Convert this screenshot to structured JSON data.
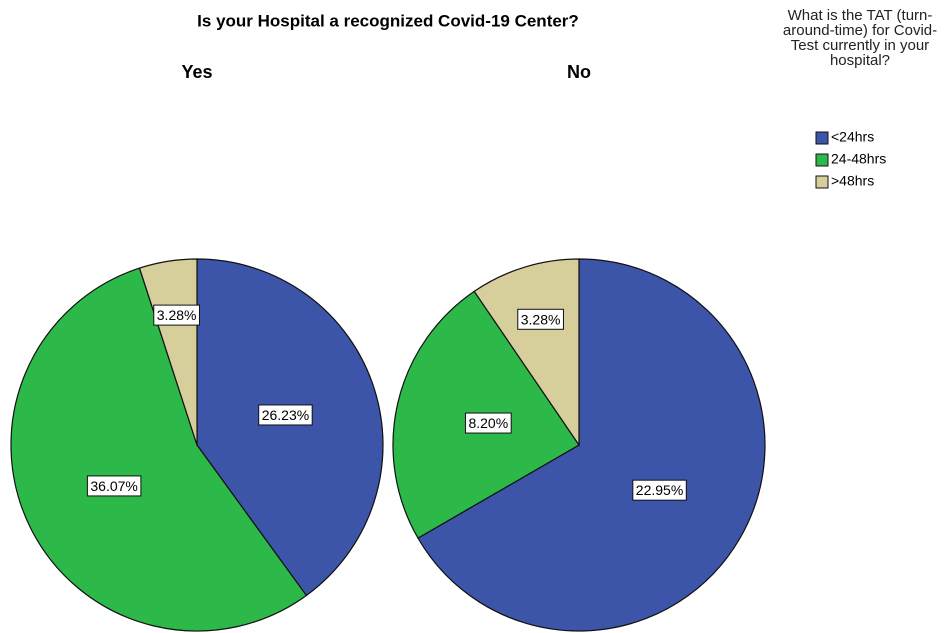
{
  "chart_data": {
    "type": "pie",
    "title": "Is your Hospital a recognized Covid-19 Center?",
    "legend_title": "What is the TAT (turn-around-time) for Covid-Test currently in your hospital?",
    "categories": [
      "<24hrs",
      "24-48hrs",
      ">48hrs"
    ],
    "colors": [
      "#3d55a8",
      "#2db84a",
      "#d6ce9b"
    ],
    "panels": [
      {
        "name": "Yes",
        "values": [
          26.23,
          36.07,
          3.28
        ],
        "value_labels": [
          "26.23%",
          "36.07%",
          "3.28%"
        ]
      },
      {
        "name": "No",
        "values": [
          22.95,
          8.2,
          3.28
        ],
        "value_labels": [
          "22.95%",
          "8.20%",
          "3.28%"
        ]
      }
    ]
  }
}
